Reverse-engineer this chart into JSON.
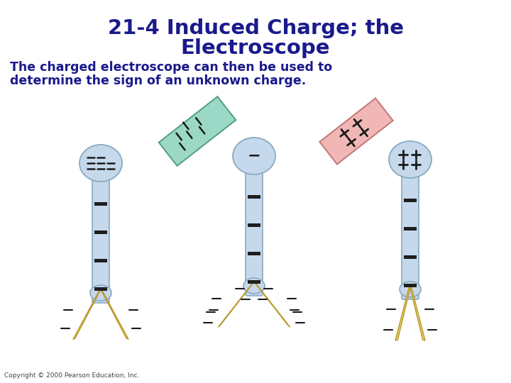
{
  "title_line1": "21-4 Induced Charge; the",
  "title_line2": "Electroscope",
  "title_color": "#1a1a8c",
  "body_text_line1": "The charged electroscope can then be used to",
  "body_text_line2": "determine the sign of an unknown charge.",
  "body_text_color": "#1a1a8c",
  "copyright": "Copyright © 2000 Pearson Education, Inc.",
  "bg_color": "#ffffff",
  "scope_fill": "#c5d8ec",
  "scope_edge": "#8aaabf",
  "leaf_fill": "#e8cc6a",
  "leaf_edge": "#b89a30",
  "neg_rod_fill": "#90d4bf",
  "neg_rod_edge": "#4a9a80",
  "pos_rod_fill": "#f0b0b0",
  "pos_rod_edge": "#c07070",
  "sign_color": "#1a1a1a"
}
